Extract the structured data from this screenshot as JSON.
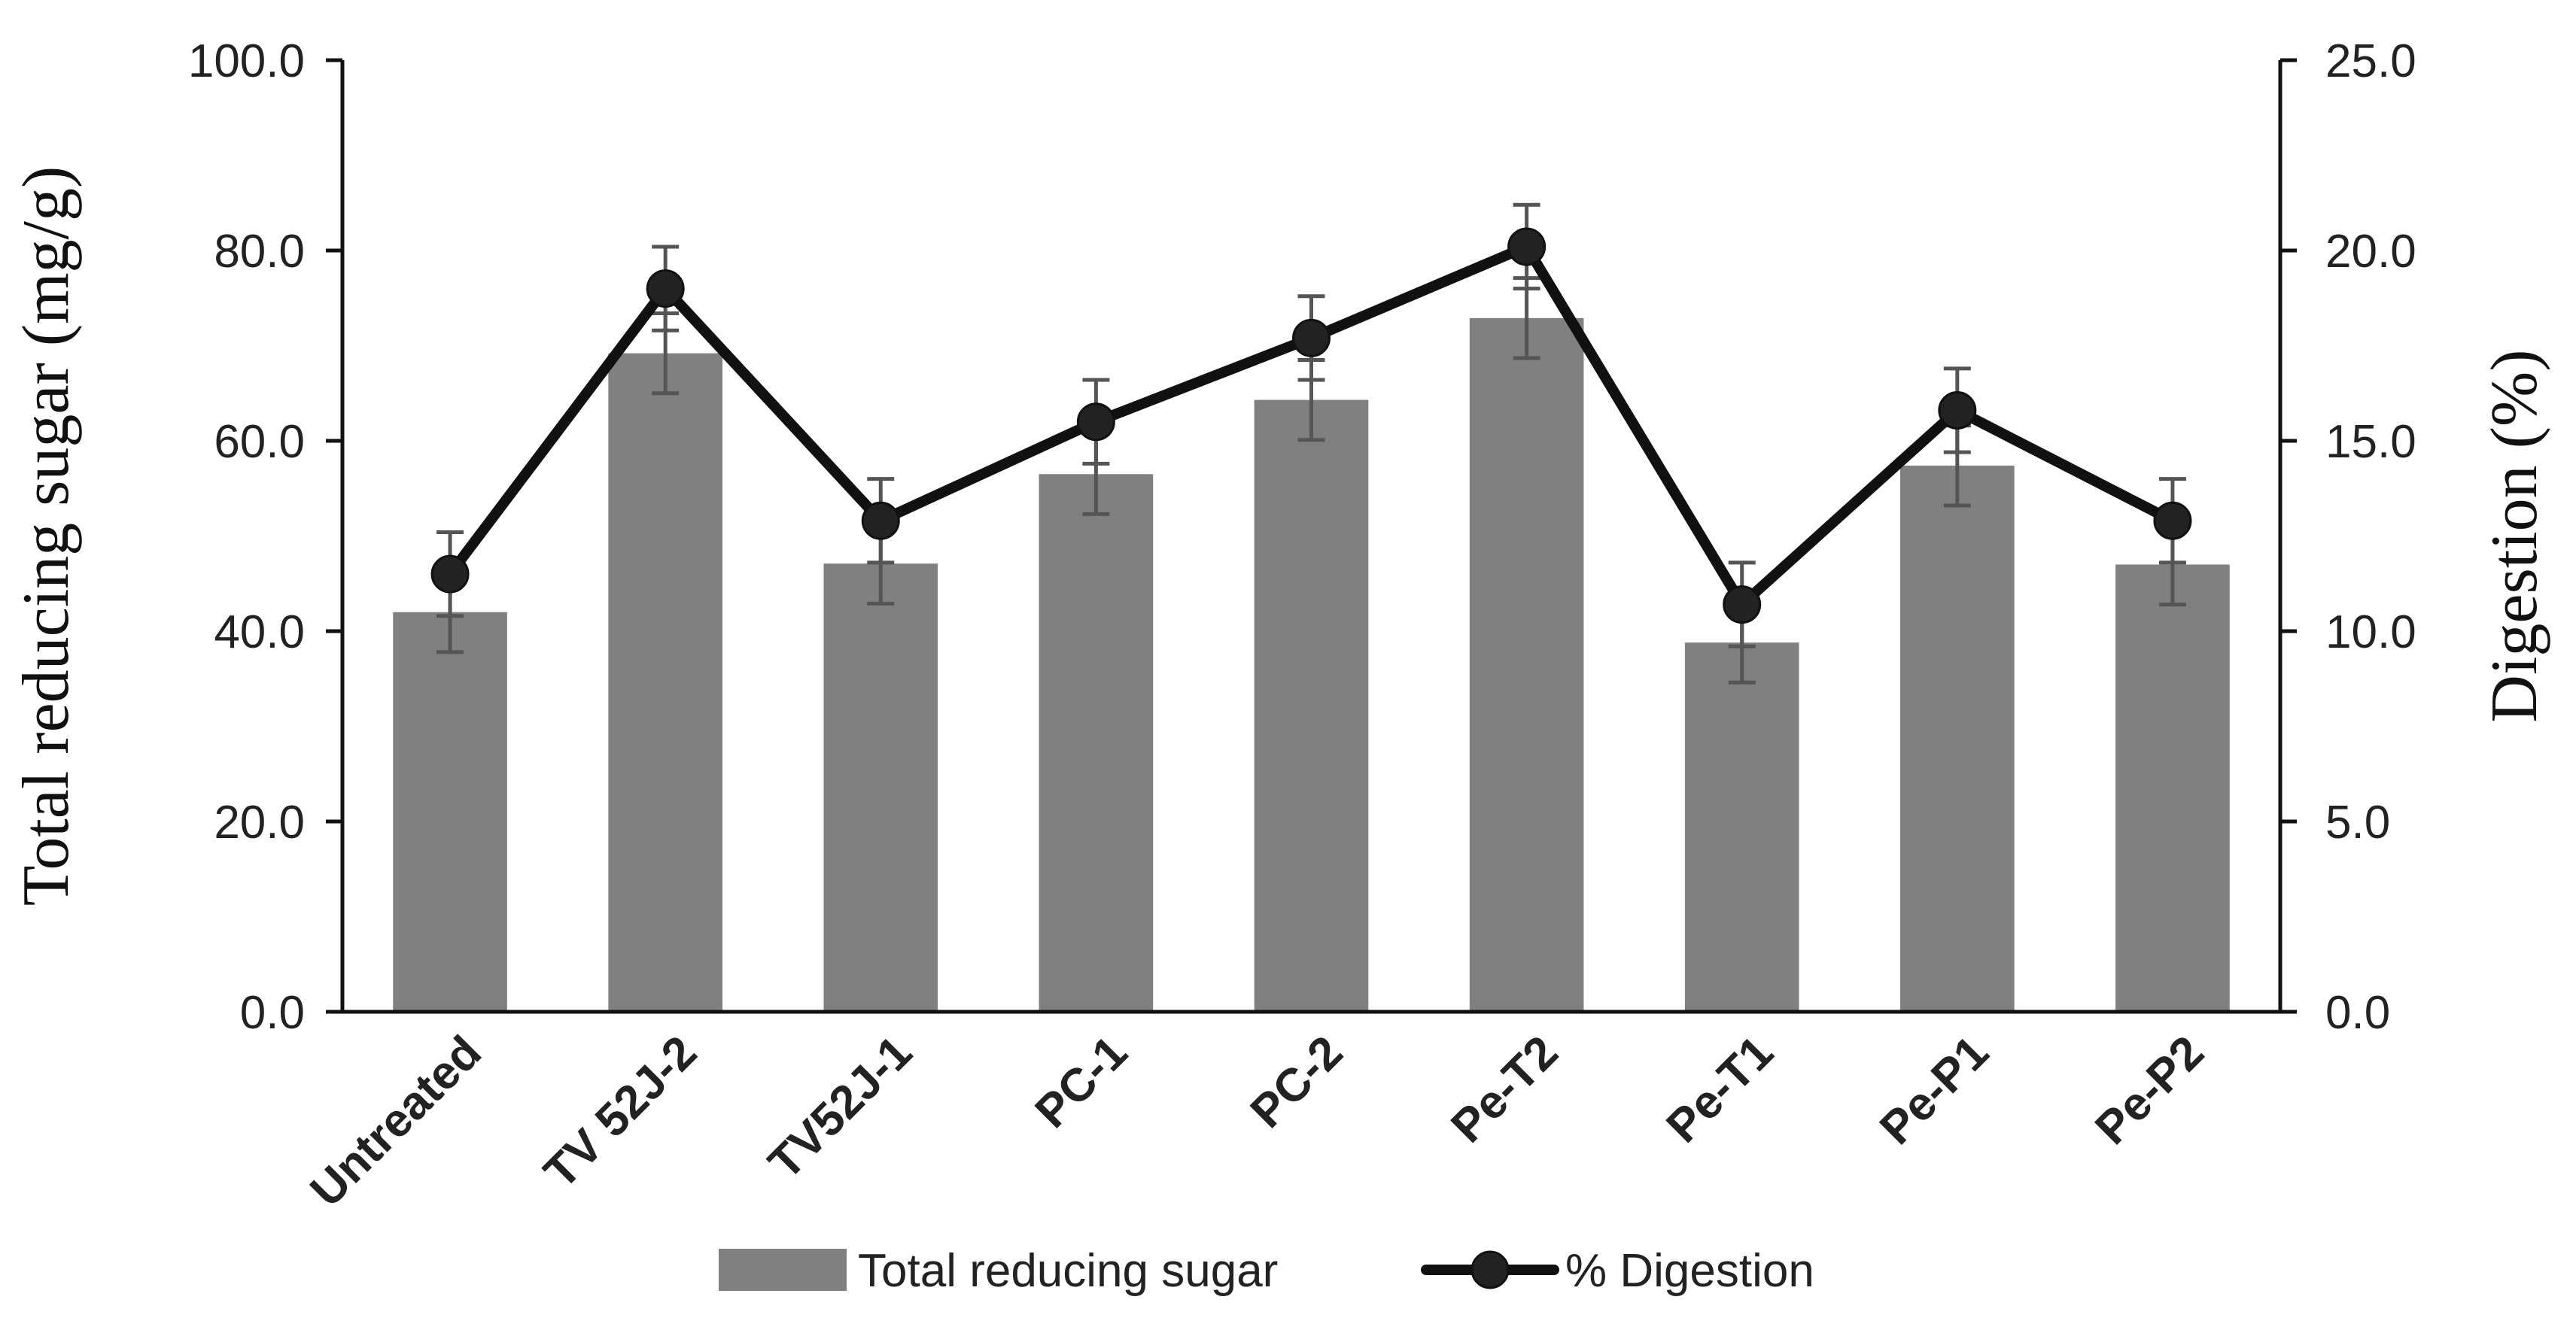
{
  "chart_data": {
    "type": "bar",
    "title": "",
    "categories": [
      "Untreated",
      "TV 52J-2",
      "TV52J-1",
      "PC-1",
      "PC-2",
      "Pe-T2",
      "Pe-T1",
      "Pe-P1",
      "Pe-P2"
    ],
    "series": [
      {
        "name": "Total reducing sugar",
        "type": "bar",
        "axis": "left",
        "color": "#808080",
        "values": [
          42.0,
          69.2,
          47.1,
          56.5,
          64.3,
          72.9,
          38.8,
          57.4,
          47.0
        ],
        "errors": [
          4.2,
          4.2,
          4.2,
          4.2,
          4.2,
          4.2,
          4.2,
          4.2,
          4.2
        ]
      },
      {
        "name": "% Digestion",
        "type": "line",
        "axis": "right",
        "color": "#111111",
        "values": [
          11.5,
          19.0,
          12.9,
          15.5,
          17.7,
          20.1,
          10.7,
          15.8,
          12.9
        ],
        "errors": [
          1.1,
          1.1,
          1.1,
          1.1,
          1.1,
          1.1,
          1.1,
          1.1,
          1.1
        ]
      }
    ],
    "ylabel": "Total reducing sugar (mg/g)",
    "ylabel_right": "Digestion (%)",
    "xlabel": "",
    "ylim": [
      0,
      100
    ],
    "ylim_right": [
      0,
      25
    ],
    "yticks": [
      "0.0",
      "20.0",
      "40.0",
      "60.0",
      "80.0",
      "100.0"
    ],
    "yticks_right": [
      "0.0",
      "5.0",
      "10.0",
      "15.0",
      "20.0",
      "25.0"
    ],
    "grid": false,
    "legend": {
      "position": "bottom",
      "entries": [
        "Total reducing sugar",
        "% Digestion"
      ]
    }
  }
}
